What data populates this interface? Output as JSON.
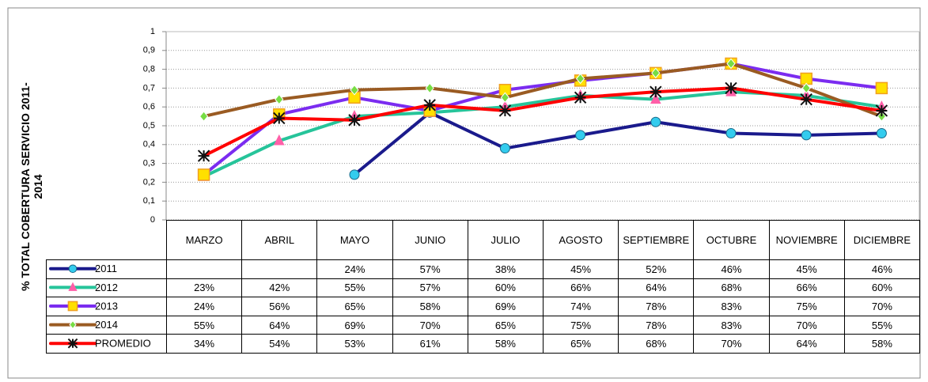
{
  "chart_data": {
    "type": "line",
    "y_label": "% TOTAL COBERTURA SERVICIO 2011-2014",
    "categories": [
      "MARZO",
      "ABRIL",
      "MAYO",
      "JUNIO",
      "JULIO",
      "AGOSTO",
      "SEPTIEMBRE",
      "OCTUBRE",
      "NOVIEMBRE",
      "DICIEMBRE"
    ],
    "ylim": [
      0,
      1
    ],
    "yticks": [
      0,
      {
        "value": 0.1,
        "label": "0,1"
      },
      {
        "value": 0.2,
        "label": "0,2"
      },
      {
        "value": 0.3,
        "label": "0,3"
      },
      {
        "value": 0.4,
        "label": "0,4"
      },
      {
        "value": 0.5,
        "label": "0,5"
      },
      {
        "value": 0.6,
        "label": "0,6"
      },
      {
        "value": 0.7,
        "label": "0,7"
      },
      {
        "value": 0.8,
        "label": "0,8"
      },
      {
        "value": 0.9,
        "label": "0,9"
      },
      1
    ],
    "grid": true,
    "series": [
      {
        "name": "2011",
        "color": "#1a1a8c",
        "marker": "circle",
        "marker_color": "#33ccee",
        "values": [
          null,
          null,
          0.24,
          0.57,
          0.38,
          0.45,
          0.52,
          0.46,
          0.45,
          0.46
        ],
        "value_labels": [
          null,
          null,
          "24%",
          "57%",
          "38%",
          "45%",
          "52%",
          "46%",
          "45%",
          "46%"
        ]
      },
      {
        "name": "2012",
        "color": "#26c49a",
        "marker": "triangle",
        "marker_color": "#ff5fa8",
        "values": [
          0.23,
          0.42,
          0.55,
          0.57,
          0.6,
          0.66,
          0.64,
          0.68,
          0.66,
          0.6
        ],
        "value_labels": [
          "23%",
          "42%",
          "55%",
          "57%",
          "60%",
          "66%",
          "64%",
          "68%",
          "66%",
          "60%"
        ]
      },
      {
        "name": "2013",
        "color": "#7b2cf0",
        "marker": "square",
        "marker_color": "#ffe000",
        "values": [
          0.24,
          0.56,
          0.65,
          0.58,
          0.69,
          0.74,
          0.78,
          0.83,
          0.75,
          0.7
        ],
        "value_labels": [
          "24%",
          "56%",
          "65%",
          "58%",
          "69%",
          "74%",
          "78%",
          "83%",
          "75%",
          "70%"
        ]
      },
      {
        "name": "2014",
        "color": "#9a5b22",
        "marker": "diamond",
        "marker_color": "#77dd44",
        "values": [
          0.55,
          0.64,
          0.69,
          0.7,
          0.65,
          0.75,
          0.78,
          0.83,
          0.7,
          0.55
        ],
        "value_labels": [
          "55%",
          "64%",
          "69%",
          "70%",
          "65%",
          "75%",
          "78%",
          "83%",
          "70%",
          "55%"
        ]
      },
      {
        "name": "PROMEDIO",
        "color": "#ff0000",
        "marker": "star",
        "marker_color": "#111111",
        "values": [
          0.34,
          0.54,
          0.53,
          0.61,
          0.58,
          0.65,
          0.68,
          0.7,
          0.64,
          0.58
        ],
        "value_labels": [
          "34%",
          "54%",
          "53%",
          "61%",
          "58%",
          "65%",
          "68%",
          "70%",
          "64%",
          "58%"
        ]
      }
    ]
  }
}
